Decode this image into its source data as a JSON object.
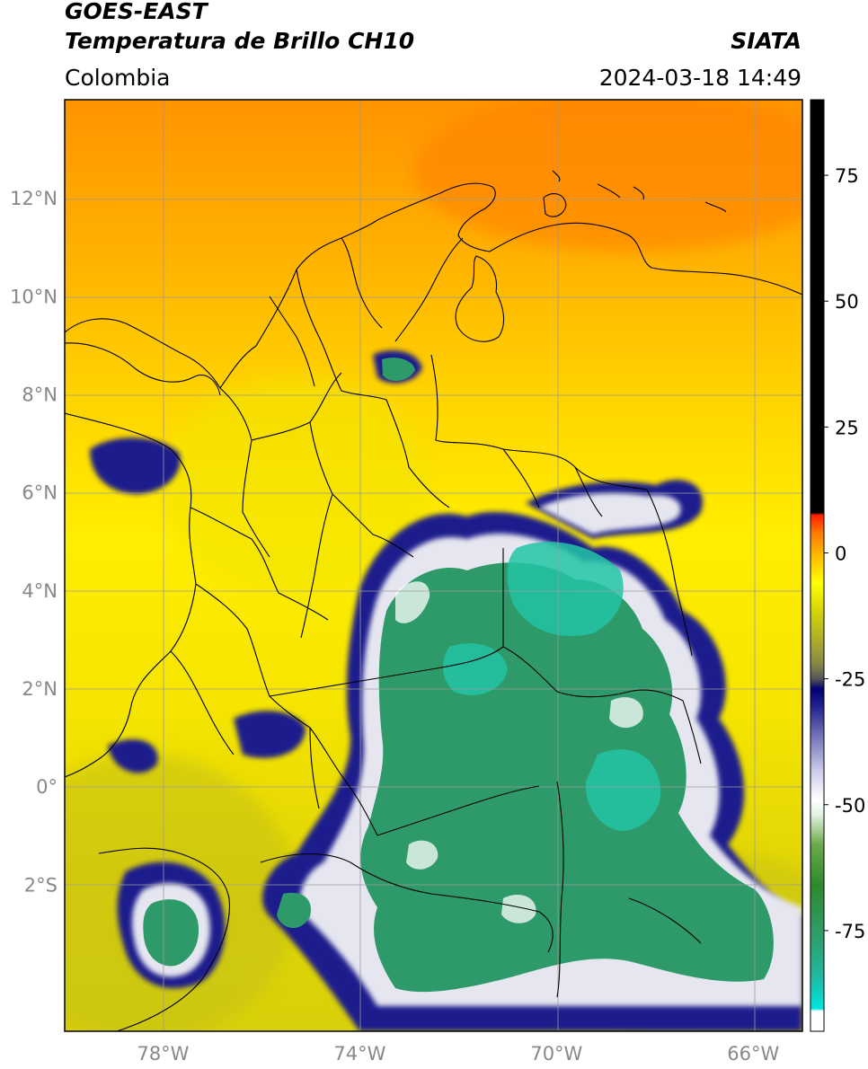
{
  "header": {
    "satellite": "GOES-EAST",
    "product": "Temperatura de Brillo CH10",
    "region": "Colombia",
    "organization": "SIATA",
    "datetime": "2024-03-18 14:49"
  },
  "map": {
    "extent": {
      "lon": [
        -80.0,
        -65.0
      ],
      "lat": [
        -5.0,
        14.0
      ]
    },
    "lat_ticks": [
      {
        "value": 12,
        "label": "12°N"
      },
      {
        "value": 10,
        "label": "10°N"
      },
      {
        "value": 8,
        "label": "8°N"
      },
      {
        "value": 6,
        "label": "6°N"
      },
      {
        "value": 4,
        "label": "4°N"
      },
      {
        "value": 2,
        "label": "2°N"
      },
      {
        "value": 0,
        "label": "0°"
      },
      {
        "value": -2,
        "label": "2°S"
      }
    ],
    "lon_ticks": [
      {
        "value": -78,
        "label": "78°W"
      },
      {
        "value": -74,
        "label": "74°W"
      },
      {
        "value": -70,
        "label": "70°W"
      },
      {
        "value": -66,
        "label": "66°W"
      }
    ],
    "grid": true
  },
  "colorbar": {
    "range": [
      -95,
      90
    ],
    "ticks": [
      {
        "value": 75,
        "label": "75"
      },
      {
        "value": 50,
        "label": "50"
      },
      {
        "value": 25,
        "label": "25"
      },
      {
        "value": 0,
        "label": "0"
      },
      {
        "value": -25,
        "label": "-25"
      },
      {
        "value": -50,
        "label": "-50"
      },
      {
        "value": -75,
        "label": "-75"
      }
    ],
    "stops": [
      {
        "value": -95,
        "color": "#ffffff"
      },
      {
        "value": -91,
        "color": "#ffffff"
      },
      {
        "value": -90.5,
        "color": "#00e5e0"
      },
      {
        "value": -84,
        "color": "#20b8a0"
      },
      {
        "value": -76,
        "color": "#2e9e6a"
      },
      {
        "value": -66,
        "color": "#2e8a2e"
      },
      {
        "value": -58,
        "color": "#6aaa4a"
      },
      {
        "value": -52,
        "color": "#e4f2e4"
      },
      {
        "value": -49,
        "color": "#ffffff"
      },
      {
        "value": -43,
        "color": "#c8c8e8"
      },
      {
        "value": -36,
        "color": "#6e6eb4"
      },
      {
        "value": -30,
        "color": "#1c1c8c"
      },
      {
        "value": -27,
        "color": "#000070"
      },
      {
        "value": -25,
        "color": "#555555"
      },
      {
        "value": -22,
        "color": "#888848"
      },
      {
        "value": -18,
        "color": "#a8a830"
      },
      {
        "value": -12,
        "color": "#d2d20a"
      },
      {
        "value": -6,
        "color": "#ffff00"
      },
      {
        "value": 0,
        "color": "#ffb400"
      },
      {
        "value": 4,
        "color": "#ff7800"
      },
      {
        "value": 7.5,
        "color": "#ff2000"
      },
      {
        "value": 8,
        "color": "#000000"
      },
      {
        "value": 90,
        "color": "#000000"
      }
    ]
  },
  "colors": {
    "sea_orange": "#ff9a00",
    "mid_orange": "#ffc400",
    "yellow": "#ffee00",
    "olive": "#c9c416",
    "deep_blue": "#1c1c8c",
    "cloud_white": "#ececf4",
    "cloud_green": "#2e9a6a",
    "cloud_cyan": "#22c4a4",
    "borders": "#000000",
    "grid": "#9a9a9a",
    "tick_text": "#888888"
  }
}
